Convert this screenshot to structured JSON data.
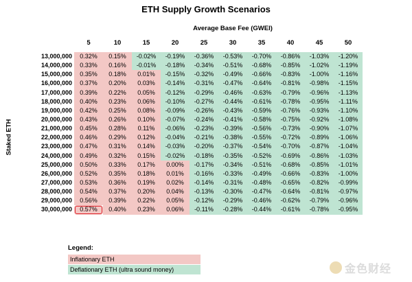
{
  "chart_data": {
    "type": "table",
    "title": "ETH Supply Growth Scenarios",
    "xlabel": "Average Base Fee (GWEI)",
    "ylabel": "Staked ETH",
    "columns": [
      "5",
      "10",
      "15",
      "20",
      "25",
      "30",
      "35",
      "40",
      "45",
      "50"
    ],
    "rows": [
      "13,000,000",
      "14,000,000",
      "15,000,000",
      "16,000,000",
      "17,000,000",
      "18,000,000",
      "19,000,000",
      "20,000,000",
      "21,000,000",
      "22,000,000",
      "23,000,000",
      "24,000,000",
      "25,000,000",
      "26,000,000",
      "27,000,000",
      "28,000,000",
      "29,000,000",
      "30,000,000"
    ],
    "values": [
      [
        "0.32%",
        "0.15%",
        "-0.02%",
        "-0.19%",
        "-0.36%",
        "-0.53%",
        "-0.70%",
        "-0.86%",
        "-1.03%",
        "-1.20%"
      ],
      [
        "0.33%",
        "0.16%",
        "-0.01%",
        "-0.18%",
        "-0.34%",
        "-0.51%",
        "-0.68%",
        "-0.85%",
        "-1.02%",
        "-1.19%"
      ],
      [
        "0.35%",
        "0.18%",
        "0.01%",
        "-0.15%",
        "-0.32%",
        "-0.49%",
        "-0.66%",
        "-0.83%",
        "-1.00%",
        "-1.16%"
      ],
      [
        "0.37%",
        "0.20%",
        "0.03%",
        "-0.14%",
        "-0.31%",
        "-0.47%",
        "-0.64%",
        "-0.81%",
        "-0.98%",
        "-1.15%"
      ],
      [
        "0.39%",
        "0.22%",
        "0.05%",
        "-0.12%",
        "-0.29%",
        "-0.46%",
        "-0.63%",
        "-0.79%",
        "-0.96%",
        "-1.13%"
      ],
      [
        "0.40%",
        "0.23%",
        "0.06%",
        "-0.10%",
        "-0.27%",
        "-0.44%",
        "-0.61%",
        "-0.78%",
        "-0.95%",
        "-1.11%"
      ],
      [
        "0.42%",
        "0.25%",
        "0.08%",
        "-0.09%",
        "-0.26%",
        "-0.43%",
        "-0.59%",
        "-0.76%",
        "-0.93%",
        "-1.10%"
      ],
      [
        "0.43%",
        "0.26%",
        "0.10%",
        "-0.07%",
        "-0.24%",
        "-0.41%",
        "-0.58%",
        "-0.75%",
        "-0.92%",
        "-1.08%"
      ],
      [
        "0.45%",
        "0.28%",
        "0.11%",
        "-0.06%",
        "-0.23%",
        "-0.39%",
        "-0.56%",
        "-0.73%",
        "-0.90%",
        "-1.07%"
      ],
      [
        "0.46%",
        "0.29%",
        "0.12%",
        "-0.04%",
        "-0.21%",
        "-0.38%",
        "-0.55%",
        "-0.72%",
        "-0.89%",
        "-1.06%"
      ],
      [
        "0.47%",
        "0.31%",
        "0.14%",
        "-0.03%",
        "-0.20%",
        "-0.37%",
        "-0.54%",
        "-0.70%",
        "-0.87%",
        "-1.04%"
      ],
      [
        "0.49%",
        "0.32%",
        "0.15%",
        "-0.02%",
        "-0.18%",
        "-0.35%",
        "-0.52%",
        "-0.69%",
        "-0.86%",
        "-1.03%"
      ],
      [
        "0.50%",
        "0.33%",
        "0.17%",
        "0.00%",
        "-0.17%",
        "-0.34%",
        "-0.51%",
        "-0.68%",
        "-0.85%",
        "-1.01%"
      ],
      [
        "0.52%",
        "0.35%",
        "0.18%",
        "0.01%",
        "-0.16%",
        "-0.33%",
        "-0.49%",
        "-0.66%",
        "-0.83%",
        "-1.00%"
      ],
      [
        "0.53%",
        "0.36%",
        "0.19%",
        "0.02%",
        "-0.14%",
        "-0.31%",
        "-0.48%",
        "-0.65%",
        "-0.82%",
        "-0.99%"
      ],
      [
        "0.54%",
        "0.37%",
        "0.20%",
        "0.04%",
        "-0.13%",
        "-0.30%",
        "-0.47%",
        "-0.64%",
        "-0.81%",
        "-0.97%"
      ],
      [
        "0.56%",
        "0.39%",
        "0.22%",
        "0.05%",
        "-0.12%",
        "-0.29%",
        "-0.46%",
        "-0.62%",
        "-0.79%",
        "-0.96%"
      ],
      [
        "0.57%",
        "0.40%",
        "0.23%",
        "0.06%",
        "-0.11%",
        "-0.28%",
        "-0.44%",
        "-0.61%",
        "-0.78%",
        "-0.95%"
      ]
    ],
    "highlighted_cell": {
      "row": "30,000,000",
      "column": "5"
    },
    "colors": {
      "inflationary": "#f3c8c5",
      "deflationary": "#bfe4d2",
      "highlight": "#e0252e"
    }
  },
  "legend": {
    "title": "Legend:",
    "inflationary": "Inflationary ETH",
    "deflationary": "Deflationary ETH (ultra sound money)"
  },
  "watermark": {
    "text": "金色财经",
    "icon": "jinse-logo-icon"
  }
}
